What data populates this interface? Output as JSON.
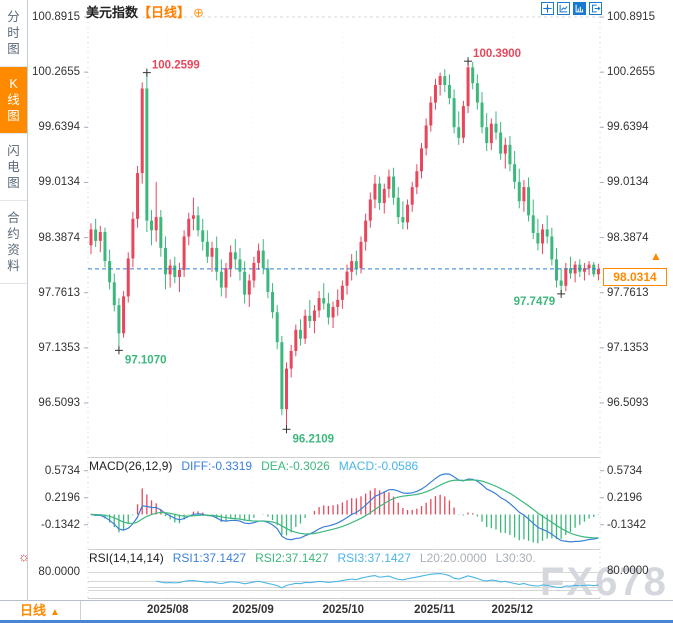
{
  "header": {
    "title": "美元指数",
    "period_tag": "【日线】",
    "add_icon": "⊕",
    "toolbar_icons": [
      {
        "name": "move-icon"
      },
      {
        "name": "line-scale-icon"
      },
      {
        "name": "bar-scale-icon",
        "filled": true
      },
      {
        "name": "exit-icon"
      }
    ]
  },
  "sidebar": {
    "tabs": [
      {
        "label": "分时图",
        "active": false
      },
      {
        "label": "K线图",
        "active": true
      },
      {
        "label": "闪电图",
        "active": false
      },
      {
        "label": "合约资料",
        "active": false
      }
    ]
  },
  "macd_header": {
    "title": "MACD(26,12,9)",
    "diff": "DIFF:-0.3319",
    "dea": "DEA:-0.3026",
    "macd": "MACD:-0.0586"
  },
  "rsi_header": {
    "title": "RSI(14,14,14)",
    "rsi1": "RSI1:37.1427",
    "rsi2": "RSI2:37.1427",
    "rsi3": "RSI3:37.1427",
    "l20": "L20:20.0000",
    "l30": "L30:30."
  },
  "rsi_axis_label": "80.0000",
  "current_price": {
    "value": "98.0314"
  },
  "bottom": {
    "period": "日线",
    "arrow": "▲"
  },
  "watermark": "FX678",
  "colors": {
    "up": "#e8465a",
    "down": "#3cb87c",
    "orange_accent": "#ff8a00",
    "blue_dashed_line": "#2e7fd8",
    "diff_line": "#3b7fd8",
    "dea_line": "#3cb87c",
    "macd_value": "#4ab5e5",
    "rsi_line": "#4ab5e5",
    "icon_blue": "#1878d2"
  },
  "chart_data": {
    "type": "candlestick",
    "symbol": "美元指数",
    "period": "日线",
    "y_ticks": [
      "100.8915",
      "100.2655",
      "99.6394",
      "99.0134",
      "98.3874",
      "97.7613",
      "97.1353",
      "96.5093"
    ],
    "x_ticks": [
      {
        "label": "2025/08",
        "pos": 16.5
      },
      {
        "label": "2025/09",
        "pos": 34.8
      },
      {
        "label": "2025/10",
        "pos": 54.2
      },
      {
        "label": "2025/11",
        "pos": 73.8
      },
      {
        "label": "2025/12",
        "pos": 90.5
      }
    ],
    "current_price": 98.0314,
    "annotations": [
      {
        "text": "100.2599",
        "index": 12,
        "price": 100.2599,
        "kind": "high"
      },
      {
        "text": "100.3900",
        "index": 81,
        "price": 100.39,
        "kind": "high"
      },
      {
        "text": "97.1070",
        "index": 6,
        "price": 97.107,
        "kind": "low"
      },
      {
        "text": "96.2109",
        "index": 42,
        "price": 96.2109,
        "kind": "low"
      },
      {
        "text": "97.7479",
        "index": 101,
        "price": 97.7479,
        "kind": "low-left"
      }
    ],
    "ohlc": [
      [
        98.3,
        98.55,
        98.2,
        98.48
      ],
      [
        98.48,
        98.6,
        98.28,
        98.35
      ],
      [
        98.35,
        98.52,
        98.22,
        98.45
      ],
      [
        98.45,
        98.5,
        98.05,
        98.12
      ],
      [
        98.12,
        98.25,
        97.8,
        97.88
      ],
      [
        97.88,
        97.98,
        97.55,
        97.62
      ],
      [
        97.62,
        97.7,
        97.107,
        97.3
      ],
      [
        97.3,
        97.78,
        97.25,
        97.72
      ],
      [
        97.72,
        98.22,
        97.65,
        98.15
      ],
      [
        98.15,
        98.68,
        98.05,
        98.6
      ],
      [
        98.6,
        99.2,
        98.5,
        99.12
      ],
      [
        99.12,
        100.15,
        99.0,
        100.08
      ],
      [
        100.08,
        100.2599,
        98.45,
        98.58
      ],
      [
        98.58,
        98.7,
        98.3,
        98.47
      ],
      [
        98.47,
        99.02,
        98.34,
        98.62
      ],
      [
        98.62,
        98.7,
        98.17,
        98.27
      ],
      [
        98.27,
        98.4,
        97.8,
        97.97
      ],
      [
        97.97,
        98.14,
        97.82,
        98.07
      ],
      [
        98.07,
        98.17,
        97.87,
        97.94
      ],
      [
        97.94,
        98.1,
        97.77,
        98.02
      ],
      [
        98.02,
        98.47,
        97.94,
        98.4
      ],
      [
        98.4,
        98.67,
        98.3,
        98.6
      ],
      [
        98.6,
        98.84,
        98.47,
        98.64
      ],
      [
        98.64,
        98.74,
        98.4,
        98.47
      ],
      [
        98.47,
        98.6,
        98.24,
        98.34
      ],
      [
        98.34,
        98.47,
        98.1,
        98.17
      ],
      [
        98.17,
        98.34,
        98.0,
        98.27
      ],
      [
        98.27,
        98.4,
        97.9,
        98.0
      ],
      [
        98.0,
        98.14,
        97.72,
        97.82
      ],
      [
        97.82,
        98.1,
        97.7,
        98.04
      ],
      [
        98.04,
        98.3,
        97.94,
        98.22
      ],
      [
        98.22,
        98.37,
        98.04,
        98.14
      ],
      [
        98.14,
        98.27,
        97.9,
        98.0
      ],
      [
        98.0,
        98.12,
        97.64,
        97.74
      ],
      [
        97.74,
        97.97,
        97.6,
        97.9
      ],
      [
        97.9,
        98.17,
        97.82,
        98.1
      ],
      [
        98.1,
        98.32,
        98.02,
        98.24
      ],
      [
        98.24,
        98.37,
        97.97,
        98.04
      ],
      [
        98.04,
        98.14,
        97.7,
        97.77
      ],
      [
        97.77,
        97.87,
        97.47,
        97.54
      ],
      [
        97.54,
        97.62,
        97.12,
        97.2
      ],
      [
        97.2,
        97.27,
        96.37,
        96.44
      ],
      [
        96.44,
        96.97,
        96.2109,
        96.9
      ],
      [
        96.9,
        97.17,
        96.8,
        97.1
      ],
      [
        97.1,
        97.4,
        97.04,
        97.34
      ],
      [
        97.34,
        97.46,
        97.16,
        97.24
      ],
      [
        97.24,
        97.57,
        97.18,
        97.5
      ],
      [
        97.5,
        97.68,
        97.36,
        97.44
      ],
      [
        97.44,
        97.62,
        97.3,
        97.56
      ],
      [
        97.56,
        97.78,
        97.48,
        97.7
      ],
      [
        97.7,
        97.87,
        97.57,
        97.64
      ],
      [
        97.64,
        97.76,
        97.4,
        97.48
      ],
      [
        97.48,
        97.66,
        97.36,
        97.6
      ],
      [
        97.6,
        97.8,
        97.5,
        97.68
      ],
      [
        97.68,
        97.9,
        97.58,
        97.84
      ],
      [
        97.84,
        98.08,
        97.74,
        98.0
      ],
      [
        98.0,
        98.2,
        97.9,
        98.12
      ],
      [
        98.12,
        98.24,
        97.96,
        98.04
      ],
      [
        98.04,
        98.4,
        97.98,
        98.34
      ],
      [
        98.34,
        98.66,
        98.24,
        98.58
      ],
      [
        98.58,
        98.9,
        98.5,
        98.82
      ],
      [
        98.82,
        99.1,
        98.72,
        99.0
      ],
      [
        99.0,
        99.08,
        98.7,
        98.78
      ],
      [
        98.78,
        99.0,
        98.66,
        98.94
      ],
      [
        98.94,
        99.16,
        98.84,
        99.08
      ],
      [
        99.08,
        99.18,
        98.76,
        98.84
      ],
      [
        98.84,
        98.96,
        98.54,
        98.62
      ],
      [
        98.62,
        98.8,
        98.48,
        98.56
      ],
      [
        98.56,
        98.82,
        98.48,
        98.76
      ],
      [
        98.76,
        99.02,
        98.68,
        98.96
      ],
      [
        98.96,
        99.22,
        98.88,
        99.14
      ],
      [
        99.14,
        99.46,
        99.06,
        99.4
      ],
      [
        99.4,
        99.74,
        99.32,
        99.66
      ],
      [
        99.66,
        99.99,
        99.59,
        99.92
      ],
      [
        99.92,
        100.19,
        99.84,
        100.12
      ],
      [
        100.12,
        100.26,
        100.0,
        100.22
      ],
      [
        100.22,
        100.3,
        100.04,
        100.12
      ],
      [
        100.12,
        100.24,
        99.9,
        99.97
      ],
      [
        99.97,
        100.07,
        99.57,
        99.64
      ],
      [
        99.64,
        99.82,
        99.44,
        99.52
      ],
      [
        99.52,
        99.94,
        99.46,
        99.88
      ],
      [
        99.88,
        100.39,
        99.8,
        100.32
      ],
      [
        100.32,
        100.38,
        100.07,
        100.14
      ],
      [
        100.14,
        100.24,
        99.84,
        99.92
      ],
      [
        99.92,
        100.04,
        99.57,
        99.64
      ],
      [
        99.64,
        99.8,
        99.37,
        99.46
      ],
      [
        99.46,
        99.74,
        99.38,
        99.68
      ],
      [
        99.68,
        99.82,
        99.5,
        99.58
      ],
      [
        99.58,
        99.7,
        99.27,
        99.34
      ],
      [
        99.34,
        99.52,
        99.17,
        99.44
      ],
      [
        99.44,
        99.54,
        99.14,
        99.22
      ],
      [
        99.22,
        99.37,
        98.94,
        99.02
      ],
      [
        99.02,
        99.17,
        98.72,
        98.8
      ],
      [
        98.8,
        99.04,
        98.68,
        98.96
      ],
      [
        98.96,
        99.07,
        98.57,
        98.64
      ],
      [
        98.64,
        98.82,
        98.37,
        98.44
      ],
      [
        98.44,
        98.6,
        98.24,
        98.32
      ],
      [
        98.32,
        98.54,
        98.2,
        98.48
      ],
      [
        98.48,
        98.64,
        98.32,
        98.4
      ],
      [
        98.4,
        98.5,
        98.07,
        98.14
      ],
      [
        98.14,
        98.27,
        97.82,
        97.9
      ],
      [
        97.9,
        98.04,
        97.7479,
        97.84
      ],
      [
        97.84,
        98.1,
        97.78,
        98.04
      ],
      [
        98.04,
        98.17,
        97.92,
        97.98
      ],
      [
        97.98,
        98.12,
        97.88,
        98.08
      ],
      [
        98.08,
        98.14,
        97.94,
        98.0
      ],
      [
        98.0,
        98.1,
        97.9,
        98.04
      ],
      [
        98.04,
        98.12,
        97.96,
        98.08
      ],
      [
        98.08,
        98.11,
        97.94,
        97.97
      ],
      [
        97.97,
        98.09,
        97.9,
        98.0314
      ]
    ],
    "indicators": {
      "macd": {
        "params": [
          26,
          12,
          9
        ],
        "diff": -0.3319,
        "dea": -0.3026,
        "macd": -0.0586,
        "y_ticks": [
          "0.5734",
          "0.2196",
          "-0.1342"
        ]
      },
      "rsi": {
        "params": [
          14,
          14,
          14
        ],
        "rsi1": 37.1427,
        "rsi2": 37.1427,
        "rsi3": 37.1427,
        "levels": [
          80,
          50,
          30,
          20
        ]
      }
    }
  }
}
